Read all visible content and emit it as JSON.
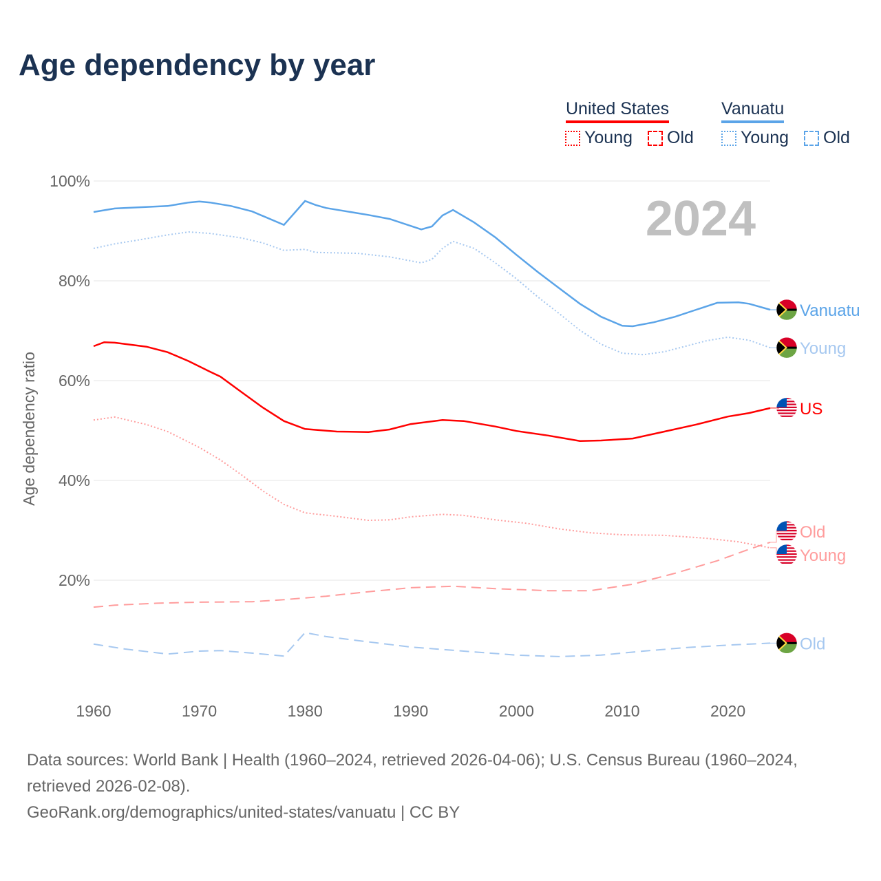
{
  "title": "Age dependency by year",
  "legend": {
    "countries": [
      {
        "name": "United States",
        "color": "#ff0000",
        "items": [
          "Young",
          "Old"
        ]
      },
      {
        "name": "Vanuatu",
        "color": "#5ba4e8",
        "items": [
          "Young",
          "Old"
        ]
      }
    ]
  },
  "footer": {
    "sources": "Data sources: World Bank | Health (1960–2024, retrieved 2026-04-06); U.S. Census Bureau (1960–2024,",
    "sources2": "retrieved 2026-02-08).",
    "url": "GeoRank.org/demographics/united-states/vanuatu | CC BY"
  },
  "chart_data": {
    "type": "line",
    "title": "Age dependency by year",
    "year_label": "2024",
    "xlabel": "",
    "ylabel": "Age dependency ratio",
    "xlim": [
      1960,
      2024
    ],
    "ylim": [
      0,
      100
    ],
    "x_ticks": [
      "1960",
      "1970",
      "1980",
      "1990",
      "2000",
      "2010",
      "2020"
    ],
    "y_ticks": [
      "20%",
      "40%",
      "60%",
      "80%",
      "100%"
    ],
    "grid": true,
    "series": [
      {
        "id": "vu-total",
        "name": "Vanuatu",
        "label": "Vanuatu",
        "flag": "vanuatu",
        "color": "#5ba4e8",
        "dash": "solid",
        "points": [
          [
            1960,
            93.8
          ],
          [
            1962,
            94.5
          ],
          [
            1967,
            95.0
          ],
          [
            1969,
            95.7
          ],
          [
            1970,
            95.9
          ],
          [
            1971,
            95.7
          ],
          [
            1973,
            95.0
          ],
          [
            1975,
            93.9
          ],
          [
            1978,
            91.2
          ],
          [
            1980,
            96.0
          ],
          [
            1981,
            95.2
          ],
          [
            1982,
            94.6
          ],
          [
            1986,
            93.2
          ],
          [
            1988,
            92.4
          ],
          [
            1991,
            90.3
          ],
          [
            1992,
            90.9
          ],
          [
            1993,
            93.1
          ],
          [
            1994,
            94.2
          ],
          [
            1996,
            91.7
          ],
          [
            1998,
            88.7
          ],
          [
            2000,
            85.2
          ],
          [
            2002,
            81.8
          ],
          [
            2004,
            78.6
          ],
          [
            2006,
            75.4
          ],
          [
            2008,
            72.8
          ],
          [
            2010,
            71.0
          ],
          [
            2011,
            70.9
          ],
          [
            2013,
            71.7
          ],
          [
            2015,
            72.8
          ],
          [
            2017,
            74.2
          ],
          [
            2019,
            75.6
          ],
          [
            2021,
            75.7
          ],
          [
            2022,
            75.4
          ],
          [
            2024,
            74.2
          ]
        ]
      },
      {
        "id": "vu-young",
        "name": "Vanuatu Young",
        "label": "Young",
        "flag": "vanuatu",
        "color": "#a6c8f0",
        "dash": "dotted",
        "points": [
          [
            1960,
            86.5
          ],
          [
            1962,
            87.4
          ],
          [
            1964,
            88.1
          ],
          [
            1967,
            89.2
          ],
          [
            1969,
            89.8
          ],
          [
            1971,
            89.5
          ],
          [
            1974,
            88.6
          ],
          [
            1976,
            87.6
          ],
          [
            1978,
            86.1
          ],
          [
            1980,
            86.3
          ],
          [
            1981,
            85.7
          ],
          [
            1985,
            85.5
          ],
          [
            1988,
            84.8
          ],
          [
            1991,
            83.6
          ],
          [
            1992,
            84.3
          ],
          [
            1993,
            86.5
          ],
          [
            1994,
            87.9
          ],
          [
            1996,
            86.5
          ],
          [
            1998,
            83.6
          ],
          [
            2000,
            80.4
          ],
          [
            2002,
            76.8
          ],
          [
            2004,
            73.5
          ],
          [
            2006,
            70.1
          ],
          [
            2008,
            67.3
          ],
          [
            2010,
            65.5
          ],
          [
            2012,
            65.2
          ],
          [
            2014,
            65.8
          ],
          [
            2016,
            66.9
          ],
          [
            2018,
            68.0
          ],
          [
            2020,
            68.7
          ],
          [
            2022,
            68.1
          ],
          [
            2024,
            66.6
          ]
        ]
      },
      {
        "id": "us-total",
        "name": "United States",
        "label": "US",
        "flag": "us",
        "color": "#ff0000",
        "dash": "solid",
        "points": [
          [
            1960,
            66.9
          ],
          [
            1961,
            67.7
          ],
          [
            1962,
            67.6
          ],
          [
            1965,
            66.8
          ],
          [
            1967,
            65.7
          ],
          [
            1969,
            63.9
          ],
          [
            1971,
            61.8
          ],
          [
            1972,
            60.8
          ],
          [
            1974,
            57.7
          ],
          [
            1976,
            54.6
          ],
          [
            1978,
            51.9
          ],
          [
            1980,
            50.3
          ],
          [
            1983,
            49.8
          ],
          [
            1986,
            49.7
          ],
          [
            1988,
            50.2
          ],
          [
            1990,
            51.3
          ],
          [
            1993,
            52.1
          ],
          [
            1995,
            51.9
          ],
          [
            1998,
            50.8
          ],
          [
            2000,
            49.9
          ],
          [
            2003,
            49.0
          ],
          [
            2006,
            47.9
          ],
          [
            2008,
            48.0
          ],
          [
            2011,
            48.4
          ],
          [
            2014,
            49.8
          ],
          [
            2017,
            51.2
          ],
          [
            2020,
            52.8
          ],
          [
            2022,
            53.5
          ],
          [
            2024,
            54.5
          ]
        ]
      },
      {
        "id": "us-old",
        "name": "United States Old",
        "label": "Old",
        "flag": "us",
        "color": "#ff9c9c",
        "dash": "dashed",
        "points": [
          [
            1960,
            14.6
          ],
          [
            1962,
            15.0
          ],
          [
            1966,
            15.4
          ],
          [
            1970,
            15.6
          ],
          [
            1975,
            15.7
          ],
          [
            1978,
            16.1
          ],
          [
            1982,
            16.8
          ],
          [
            1986,
            17.7
          ],
          [
            1990,
            18.5
          ],
          [
            1994,
            18.8
          ],
          [
            1998,
            18.3
          ],
          [
            2003,
            17.9
          ],
          [
            2007,
            17.9
          ],
          [
            2011,
            19.2
          ],
          [
            2015,
            21.4
          ],
          [
            2019,
            23.9
          ],
          [
            2022,
            26.2
          ],
          [
            2024,
            27.6
          ]
        ]
      },
      {
        "id": "us-young",
        "name": "United States Young",
        "label": "Young",
        "flag": "us",
        "color": "#ff9c9c",
        "dash": "dotted",
        "points": [
          [
            1960,
            52.1
          ],
          [
            1962,
            52.7
          ],
          [
            1965,
            51.2
          ],
          [
            1967,
            49.8
          ],
          [
            1970,
            46.6
          ],
          [
            1972,
            44.1
          ],
          [
            1974,
            41.1
          ],
          [
            1976,
            37.9
          ],
          [
            1978,
            35.2
          ],
          [
            1980,
            33.5
          ],
          [
            1983,
            32.8
          ],
          [
            1986,
            32.0
          ],
          [
            1988,
            32.1
          ],
          [
            1990,
            32.7
          ],
          [
            1993,
            33.2
          ],
          [
            1995,
            33.0
          ],
          [
            1998,
            32.1
          ],
          [
            2001,
            31.4
          ],
          [
            2004,
            30.3
          ],
          [
            2007,
            29.5
          ],
          [
            2010,
            29.1
          ],
          [
            2014,
            29.0
          ],
          [
            2018,
            28.4
          ],
          [
            2021,
            27.7
          ],
          [
            2024,
            26.5
          ]
        ]
      },
      {
        "id": "vu-old",
        "name": "Vanuatu Old",
        "label": "Old",
        "flag": "vanuatu",
        "color": "#a6c8f0",
        "dash": "dashed",
        "points": [
          [
            1960,
            7.2
          ],
          [
            1963,
            6.2
          ],
          [
            1967,
            5.2
          ],
          [
            1970,
            5.8
          ],
          [
            1972,
            5.9
          ],
          [
            1975,
            5.4
          ],
          [
            1978,
            4.8
          ],
          [
            1980,
            9.5
          ],
          [
            1982,
            8.7
          ],
          [
            1985,
            7.9
          ],
          [
            1990,
            6.6
          ],
          [
            1995,
            5.8
          ],
          [
            2000,
            5.0
          ],
          [
            2004,
            4.7
          ],
          [
            2008,
            5.0
          ],
          [
            2012,
            5.8
          ],
          [
            2016,
            6.5
          ],
          [
            2020,
            7.0
          ],
          [
            2024,
            7.4
          ]
        ]
      }
    ]
  }
}
